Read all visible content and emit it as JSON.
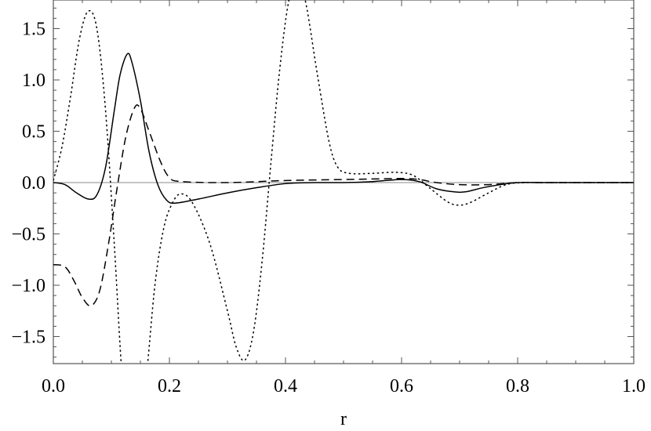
{
  "chart_data": {
    "type": "line",
    "xlabel": "r",
    "ylabel": "",
    "xlim": [
      0.0,
      1.0
    ],
    "ylim": [
      -1.8,
      1.8
    ],
    "x_ticks": [
      "0.0",
      "0.2",
      "0.4",
      "0.6",
      "0.8",
      "1.0"
    ],
    "y_ticks": [
      "1.5",
      "1.0",
      "0.5",
      "0.0",
      "−0.5",
      "−1.0",
      "−1.5"
    ],
    "zero_line": true,
    "grid": false,
    "series": [
      {
        "style": "solid",
        "color": "#000000",
        "points": [
          [
            0.0,
            0.0
          ],
          [
            0.02,
            -0.02
          ],
          [
            0.04,
            -0.1
          ],
          [
            0.06,
            -0.16
          ],
          [
            0.075,
            -0.12
          ],
          [
            0.09,
            0.15
          ],
          [
            0.105,
            0.7
          ],
          [
            0.115,
            1.05
          ],
          [
            0.127,
            1.25
          ],
          [
            0.135,
            1.18
          ],
          [
            0.15,
            0.8
          ],
          [
            0.165,
            0.3
          ],
          [
            0.18,
            -0.02
          ],
          [
            0.195,
            -0.17
          ],
          [
            0.21,
            -0.2
          ],
          [
            0.25,
            -0.16
          ],
          [
            0.3,
            -0.1
          ],
          [
            0.35,
            -0.05
          ],
          [
            0.4,
            -0.01
          ],
          [
            0.45,
            0.0
          ],
          [
            0.5,
            0.0
          ],
          [
            0.55,
            0.01
          ],
          [
            0.6,
            0.03
          ],
          [
            0.63,
            0.01
          ],
          [
            0.66,
            -0.06
          ],
          [
            0.69,
            -0.09
          ],
          [
            0.71,
            -0.09
          ],
          [
            0.74,
            -0.05
          ],
          [
            0.77,
            -0.02
          ],
          [
            0.8,
            0.0
          ],
          [
            0.85,
            0.0
          ],
          [
            1.0,
            0.0
          ]
        ]
      },
      {
        "style": "dashed",
        "color": "#000000",
        "points": [
          [
            0.0,
            -0.8
          ],
          [
            0.02,
            -0.82
          ],
          [
            0.035,
            -0.95
          ],
          [
            0.05,
            -1.12
          ],
          [
            0.065,
            -1.2
          ],
          [
            0.08,
            -1.05
          ],
          [
            0.095,
            -0.6
          ],
          [
            0.11,
            -0.05
          ],
          [
            0.125,
            0.45
          ],
          [
            0.14,
            0.73
          ],
          [
            0.15,
            0.72
          ],
          [
            0.165,
            0.5
          ],
          [
            0.185,
            0.2
          ],
          [
            0.2,
            0.05
          ],
          [
            0.22,
            0.01
          ],
          [
            0.3,
            0.0
          ],
          [
            0.4,
            0.02
          ],
          [
            0.5,
            0.03
          ],
          [
            0.55,
            0.035
          ],
          [
            0.6,
            0.04
          ],
          [
            0.63,
            0.03
          ],
          [
            0.66,
            0.0
          ],
          [
            0.7,
            -0.02
          ],
          [
            0.75,
            -0.02
          ],
          [
            0.8,
            0.0
          ],
          [
            0.85,
            0.0
          ],
          [
            1.0,
            0.0
          ]
        ]
      },
      {
        "style": "dotted",
        "color": "#000000",
        "points": [
          [
            0.0,
            0.02
          ],
          [
            0.015,
            0.35
          ],
          [
            0.03,
            0.85
          ],
          [
            0.045,
            1.4
          ],
          [
            0.06,
            1.67
          ],
          [
            0.075,
            1.5
          ],
          [
            0.09,
            0.7
          ],
          [
            0.105,
            -0.6
          ],
          [
            0.118,
            -1.85
          ],
          [
            0.13,
            -2.5
          ],
          [
            0.145,
            -2.5
          ],
          [
            0.16,
            -1.9
          ],
          [
            0.175,
            -1.0
          ],
          [
            0.19,
            -0.45
          ],
          [
            0.205,
            -0.2
          ],
          [
            0.22,
            -0.11
          ],
          [
            0.24,
            -0.2
          ],
          [
            0.27,
            -0.6
          ],
          [
            0.3,
            -1.25
          ],
          [
            0.315,
            -1.6
          ],
          [
            0.33,
            -1.73
          ],
          [
            0.345,
            -1.45
          ],
          [
            0.36,
            -0.75
          ],
          [
            0.375,
            0.2
          ],
          [
            0.39,
            1.1
          ],
          [
            0.405,
            1.75
          ],
          [
            0.42,
            2.0
          ],
          [
            0.435,
            1.75
          ],
          [
            0.455,
            1.05
          ],
          [
            0.475,
            0.4
          ],
          [
            0.49,
            0.15
          ],
          [
            0.51,
            0.09
          ],
          [
            0.55,
            0.09
          ],
          [
            0.59,
            0.1
          ],
          [
            0.62,
            0.07
          ],
          [
            0.65,
            -0.06
          ],
          [
            0.68,
            -0.19
          ],
          [
            0.7,
            -0.22
          ],
          [
            0.72,
            -0.19
          ],
          [
            0.75,
            -0.1
          ],
          [
            0.78,
            -0.02
          ],
          [
            0.81,
            0.0
          ],
          [
            0.85,
            0.0
          ],
          [
            1.0,
            0.0
          ]
        ]
      }
    ]
  }
}
